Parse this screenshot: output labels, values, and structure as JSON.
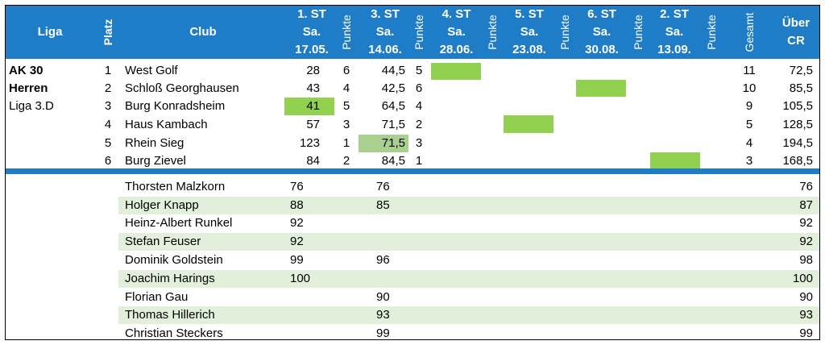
{
  "header": {
    "liga": "Liga",
    "platz": "Platz",
    "club": "Club",
    "punkte": "Punkte",
    "gesamt": "Gesamt",
    "uber": [
      "Über",
      "CR"
    ],
    "rounds": [
      {
        "st": "1. ST",
        "day": "Sa.",
        "date": "17.05."
      },
      {
        "st": "3. ST",
        "day": "Sa.",
        "date": "14.06."
      },
      {
        "st": "4. ST",
        "day": "Sa.",
        "date": "28.06."
      },
      {
        "st": "5. ST",
        "day": "Sa.",
        "date": "23.08."
      },
      {
        "st": "6. ST",
        "day": "Sa.",
        "date": "30.08."
      },
      {
        "st": "2. ST",
        "day": "Sa.",
        "date": "13.09."
      }
    ]
  },
  "league": [
    "AK 30",
    "Herren",
    "Liga 3.D"
  ],
  "standings": [
    {
      "platz": "1",
      "club": "West Golf",
      "r1": "28",
      "p1": "6",
      "r2": "44,5",
      "p2": "5",
      "gesamt": "11",
      "cr": "72,5"
    },
    {
      "platz": "2",
      "club": "Schloß Georghausen",
      "r1": "43",
      "p1": "4",
      "r2": "42,5",
      "p2": "6",
      "gesamt": "10",
      "cr": "85,5"
    },
    {
      "platz": "3",
      "club": "Burg Konradsheim",
      "r1": "41",
      "p1": "5",
      "r2": "64,5",
      "p2": "4",
      "gesamt": "9",
      "cr": "105,5"
    },
    {
      "platz": "4",
      "club": "Haus Kambach",
      "r1": "57",
      "p1": "3",
      "r2": "71,5",
      "p2": "2",
      "gesamt": "5",
      "cr": "128,5"
    },
    {
      "platz": "5",
      "club": "Rhein Sieg",
      "r1": "123",
      "p1": "1",
      "r2": "71,5",
      "p2": "3",
      "gesamt": "4",
      "cr": "194,5"
    },
    {
      "platz": "6",
      "club": "Burg Zievel",
      "r1": "84",
      "p1": "2",
      "r2": "84,5",
      "p2": "1",
      "gesamt": "3",
      "cr": "168,5"
    }
  ],
  "players": [
    {
      "name": "Thorsten Malzkorn",
      "r1": "76",
      "r2": "76",
      "cr": "76"
    },
    {
      "name": "Holger Knapp",
      "r1": "88",
      "r2": "85",
      "cr": "87"
    },
    {
      "name": "Heinz-Albert Runkel",
      "r1": "92",
      "r2": "",
      "cr": "92"
    },
    {
      "name": "Stefan Feuser",
      "r1": "92",
      "r2": "",
      "cr": "92"
    },
    {
      "name": "Dominik Goldstein",
      "r1": "99",
      "r2": "96",
      "cr": "98"
    },
    {
      "name": "Joachim Harings",
      "r1": "100",
      "r2": "",
      "cr": "100"
    },
    {
      "name": "Florian Gau",
      "r1": "",
      "r2": "90",
      "cr": "90"
    },
    {
      "name": "Thomas Hillerich",
      "r1": "",
      "r2": "93",
      "cr": "93"
    },
    {
      "name": "Christian Steckers",
      "r1": "",
      "r2": "99",
      "cr": "99"
    }
  ],
  "colors": {
    "header_blue": "#1f7dc8",
    "highlight_green": "#92d050",
    "light_green": "#a9d08e",
    "row_band": "#e2efda"
  }
}
